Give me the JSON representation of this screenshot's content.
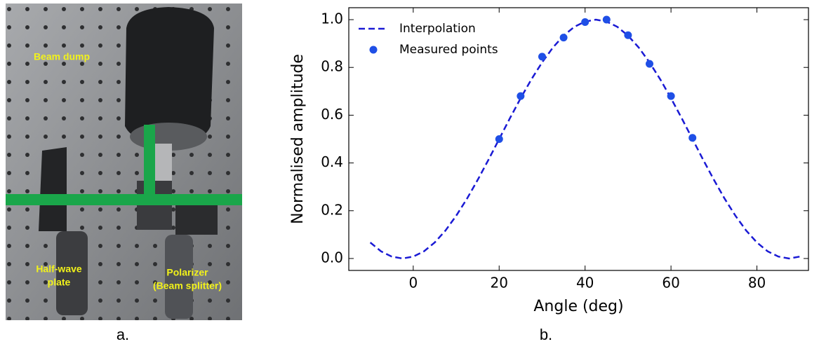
{
  "photo": {
    "labels": [
      "Beam dump",
      "Half-wave",
      "plate",
      "Polarizer",
      "(Beam splitter)"
    ],
    "caption": "a."
  },
  "chart_data": {
    "type": "line",
    "caption": "b.",
    "xlabel": "Angle (deg)",
    "ylabel": "Normalised amplitude",
    "xlim": [
      -15,
      92
    ],
    "ylim": [
      -0.05,
      1.05
    ],
    "xticks": [
      0,
      20,
      40,
      60,
      80
    ],
    "yticks": [
      {
        "value": 0,
        "label": "0.0"
      },
      {
        "value": 0.2,
        "label": "0.2"
      },
      {
        "value": 0.4,
        "label": "0.4"
      },
      {
        "value": 0.6,
        "label": "0.6"
      },
      {
        "value": 0.8,
        "label": "0.8"
      },
      {
        "value": 1,
        "label": "1.0"
      }
    ],
    "legend": "upper left",
    "series": [
      {
        "name": "Interpolation",
        "type": "line",
        "style": "dashed",
        "color": "#1a1ad4",
        "x": [
          -10,
          -7.5,
          -5,
          -2.5,
          0,
          2.5,
          5,
          7.5,
          10,
          12.5,
          15,
          17.5,
          20,
          22.5,
          25,
          27.5,
          30,
          32.5,
          35,
          37.5,
          40,
          42.5,
          45,
          47.5,
          50,
          52.5,
          55,
          57.5,
          60,
          62.5,
          65,
          67.5,
          70,
          72.5,
          75,
          77.5,
          80,
          82.5,
          85,
          87.5,
          90
        ],
        "values": [
          0.067,
          0.03,
          0.008,
          0,
          0.008,
          0.03,
          0.067,
          0.117,
          0.179,
          0.25,
          0.329,
          0.413,
          0.5,
          0.587,
          0.671,
          0.75,
          0.821,
          0.883,
          0.933,
          0.97,
          0.992,
          1,
          0.992,
          0.97,
          0.933,
          0.883,
          0.821,
          0.75,
          0.671,
          0.587,
          0.5,
          0.413,
          0.329,
          0.25,
          0.179,
          0.117,
          0.067,
          0.03,
          0.008,
          0,
          0.008
        ]
      },
      {
        "name": "Measured points",
        "type": "scatter",
        "color": "#1f4fe6",
        "x": [
          20,
          25,
          30,
          35,
          40,
          45,
          50,
          55,
          60,
          65
        ],
        "values": [
          0.5,
          0.68,
          0.845,
          0.925,
          0.99,
          1.0,
          0.935,
          0.815,
          0.68,
          0.505
        ]
      }
    ]
  }
}
